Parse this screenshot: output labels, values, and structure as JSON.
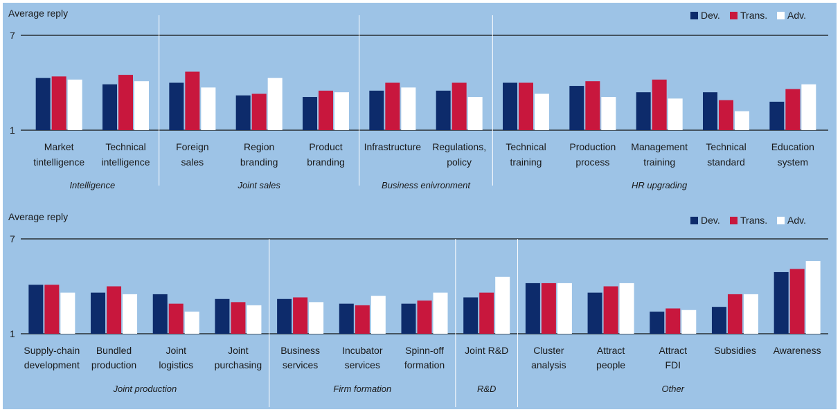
{
  "colors": {
    "dev": "#0d2b6b",
    "trans": "#c8173d",
    "adv": "#ffffff",
    "background": "#9dc3e6",
    "axis": "#111111"
  },
  "legend_position": "top-right",
  "chart_data": [
    {
      "type": "bar",
      "ylabel": "Average reply",
      "ylim": [
        1,
        7
      ],
      "tick_labels": [
        "1",
        "7"
      ],
      "legend": [
        "Dev.",
        "Trans.",
        "Adv."
      ],
      "categories": [
        [
          "Market",
          "tintelligence"
        ],
        [
          "Technical",
          "intelligence"
        ],
        [
          "Foreign",
          "sales"
        ],
        [
          "Region",
          "branding"
        ],
        [
          "Product",
          "branding"
        ],
        [
          "Infrastructure"
        ],
        [
          "Regulations,",
          "policy"
        ],
        [
          "Technical",
          "training"
        ],
        [
          "Production",
          "process"
        ],
        [
          "Management",
          "training"
        ],
        [
          "Technical",
          "standard"
        ],
        [
          "Education",
          "system"
        ]
      ],
      "groups": [
        {
          "label": "Intelligence",
          "count": 2
        },
        {
          "label": "Joint sales",
          "count": 3
        },
        {
          "label": "Business  enivronment",
          "count": 2
        },
        {
          "label": "HR upgrading",
          "count": 5
        }
      ],
      "series": [
        {
          "name": "Dev.",
          "values": [
            4.3,
            3.9,
            4.0,
            3.2,
            3.1,
            3.5,
            3.5,
            4.0,
            3.8,
            3.4,
            3.4,
            2.8
          ]
        },
        {
          "name": "Trans.",
          "values": [
            4.4,
            4.5,
            4.7,
            3.3,
            3.5,
            4.0,
            4.0,
            4.0,
            4.1,
            4.2,
            2.9,
            3.6
          ]
        },
        {
          "name": "Adv.",
          "values": [
            4.2,
            4.1,
            3.7,
            4.3,
            3.4,
            3.7,
            3.1,
            3.3,
            3.1,
            3.0,
            2.2,
            3.9
          ]
        }
      ]
    },
    {
      "type": "bar",
      "ylabel": "Average reply",
      "ylim": [
        1,
        7
      ],
      "tick_labels": [
        "1",
        "7"
      ],
      "legend": [
        "Dev.",
        "Trans.",
        "Adv."
      ],
      "categories": [
        [
          "Supply-chain",
          "development"
        ],
        [
          "Bundled",
          "production"
        ],
        [
          "Joint",
          "logistics"
        ],
        [
          "Joint",
          "purchasing"
        ],
        [
          "Business",
          "services"
        ],
        [
          "Incubator",
          "services"
        ],
        [
          "Spinn-off",
          "formation"
        ],
        [
          "Joint R&D"
        ],
        [
          "Cluster",
          "analysis"
        ],
        [
          "Attract",
          "people"
        ],
        [
          "Attract",
          "FDI"
        ],
        [
          "Subsidies"
        ],
        [
          "Awareness"
        ]
      ],
      "groups": [
        {
          "label": "Joint production",
          "count": 4
        },
        {
          "label": "Firm formation",
          "count": 3
        },
        {
          "label": "R&D",
          "count": 1
        },
        {
          "label": "Other",
          "count": 5
        }
      ],
      "series": [
        {
          "name": "Dev.",
          "values": [
            4.1,
            3.6,
            3.5,
            3.2,
            3.2,
            2.9,
            2.9,
            3.3,
            4.2,
            3.6,
            2.4,
            2.7,
            4.9
          ]
        },
        {
          "name": "Trans.",
          "values": [
            4.1,
            4.0,
            2.9,
            3.0,
            3.3,
            2.8,
            3.1,
            3.6,
            4.2,
            4.0,
            2.6,
            3.5,
            5.1
          ]
        },
        {
          "name": "Adv.",
          "values": [
            3.6,
            3.5,
            2.4,
            2.8,
            3.0,
            3.4,
            3.6,
            4.6,
            4.2,
            4.2,
            2.5,
            3.5,
            5.6
          ]
        }
      ]
    }
  ]
}
